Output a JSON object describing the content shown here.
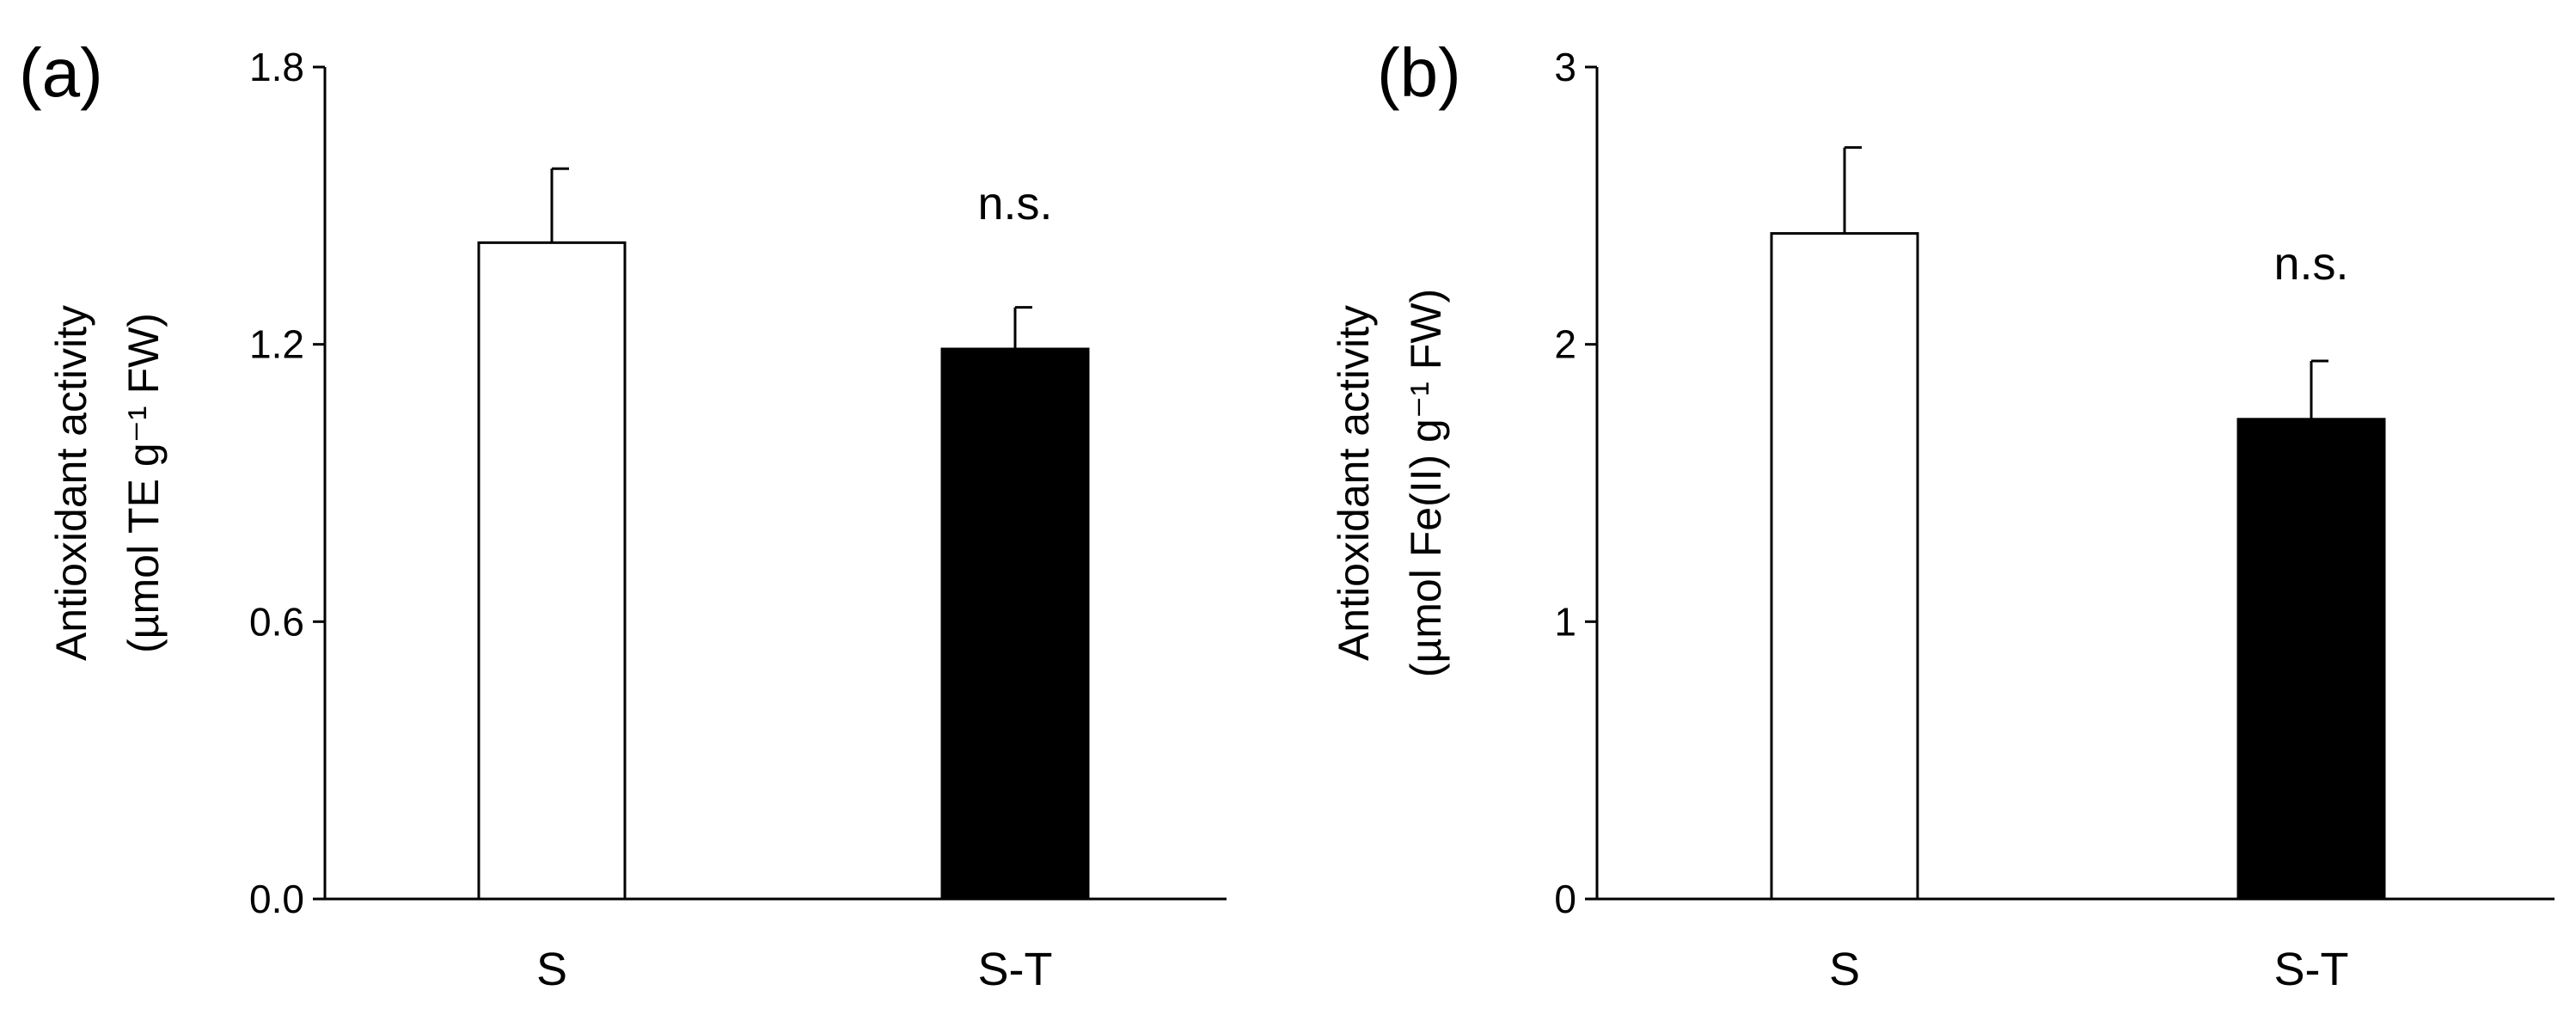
{
  "chart_data": [
    {
      "type": "bar",
      "panel_label": "(a)",
      "categories": [
        "S",
        "S-T"
      ],
      "values": [
        1.42,
        1.19
      ],
      "errors": [
        0.16,
        0.09
      ],
      "bar_colors": [
        "#ffffff",
        "#000000"
      ],
      "ylabel_lines": [
        "Antioxidant activity",
        "(µmol TE g⁻¹ FW)"
      ],
      "yticks": [
        "0.0",
        "0.6",
        "1.2",
        "1.8"
      ],
      "ytick_values": [
        0,
        0.6,
        1.2,
        1.8
      ],
      "ylim": [
        0,
        1.8
      ],
      "annotation": "n.s.",
      "grid": false
    },
    {
      "type": "bar",
      "panel_label": "(b)",
      "categories": [
        "S",
        "S-T"
      ],
      "values": [
        2.4,
        1.73
      ],
      "errors": [
        0.31,
        0.21
      ],
      "bar_colors": [
        "#ffffff",
        "#000000"
      ],
      "ylabel_lines": [
        "Antioxidant activity",
        "(µmol Fe(II) g⁻¹ FW)"
      ],
      "yticks": [
        "0",
        "1",
        "2",
        "3"
      ],
      "ytick_values": [
        0,
        1,
        2,
        3
      ],
      "ylim": [
        0,
        3
      ],
      "annotation": "n.s.",
      "grid": false
    }
  ]
}
